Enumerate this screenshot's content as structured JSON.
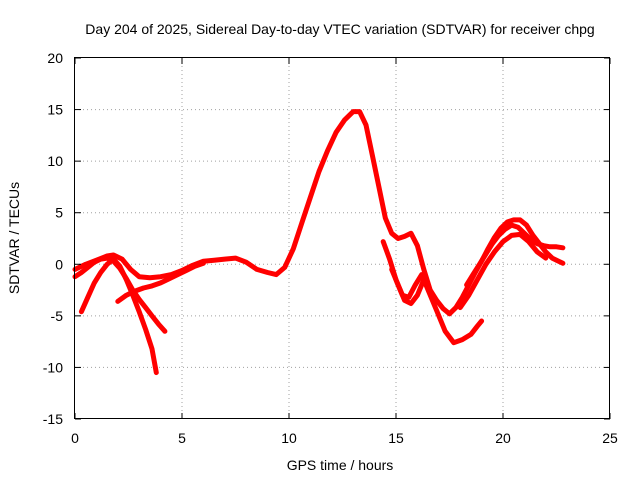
{
  "chart_data": {
    "type": "line",
    "title": "Day 204 of 2025, Sidereal Day-to-day VTEC variation (SDTVAR) for receiver chpg",
    "xlabel": "GPS time / hours",
    "ylabel": "SDTVAR / TECUs",
    "xlim": [
      0,
      25
    ],
    "ylim": [
      -15,
      20
    ],
    "xticks": [
      0,
      5,
      10,
      15,
      20,
      25
    ],
    "yticks": [
      -15,
      -10,
      -5,
      0,
      5,
      10,
      15,
      20
    ],
    "xtick_labels": [
      "0",
      "5",
      "10",
      "15",
      "20",
      "25"
    ],
    "ytick_labels": [
      "-15",
      "-10",
      "-5",
      "0",
      "5",
      "10",
      "15",
      "20"
    ],
    "grid": true,
    "series_color": "#ff0000",
    "series": [
      {
        "name": "main-trace",
        "x": [
          0.0,
          0.5,
          1.0,
          1.5,
          1.8,
          2.2,
          2.6,
          3.0,
          3.5,
          4.0,
          4.5,
          5.0,
          5.5,
          6.0,
          6.5,
          7.0,
          7.5,
          8.0,
          8.5,
          9.0,
          9.4,
          9.8,
          10.2,
          10.6,
          11.0,
          11.4,
          11.8,
          12.2,
          12.6,
          13.0,
          13.3,
          13.6,
          13.9,
          14.2,
          14.5,
          14.8,
          15.1,
          15.4,
          15.7,
          16.0,
          16.3,
          16.6,
          16.9,
          17.2,
          17.5,
          17.8,
          18.1,
          18.4,
          18.7,
          19.0,
          19.3,
          19.6,
          19.9,
          20.2,
          20.5,
          20.8,
          21.1,
          21.4,
          21.7,
          22.0,
          22.3,
          22.6,
          22.8
        ],
        "y": [
          -0.5,
          0.0,
          0.4,
          0.8,
          0.9,
          0.5,
          -0.5,
          -1.2,
          -1.3,
          -1.2,
          -1.0,
          -0.6,
          -0.1,
          0.3,
          0.4,
          0.5,
          0.6,
          0.2,
          -0.5,
          -0.8,
          -1.0,
          -0.3,
          1.5,
          4.0,
          6.5,
          9.0,
          11.0,
          12.8,
          14.0,
          14.8,
          14.8,
          13.5,
          10.5,
          7.5,
          4.5,
          3.0,
          2.5,
          2.7,
          3.0,
          1.8,
          -0.5,
          -2.5,
          -3.5,
          -4.3,
          -4.8,
          -4.2,
          -3.2,
          -2.0,
          -0.8,
          0.3,
          1.5,
          2.6,
          3.5,
          4.1,
          4.3,
          4.3,
          3.8,
          2.8,
          2.0,
          1.2,
          0.6,
          0.3,
          0.1
        ]
      },
      {
        "name": "left-branch-a",
        "x": [
          0.3,
          0.6,
          0.9,
          1.2,
          1.5,
          1.8,
          2.1,
          2.4,
          2.7,
          3.0,
          3.3,
          3.6,
          3.8
        ],
        "y": [
          -4.6,
          -3.2,
          -1.8,
          -0.8,
          0.0,
          0.5,
          -0.2,
          -1.5,
          -3.0,
          -4.6,
          -6.3,
          -8.2,
          -10.5
        ]
      },
      {
        "name": "left-branch-b",
        "x": [
          0.0,
          0.3,
          0.6,
          0.9,
          1.2,
          1.5,
          1.8,
          2.1,
          2.4,
          2.7,
          3.0,
          3.3,
          3.6,
          3.9,
          4.2
        ],
        "y": [
          -1.2,
          -0.8,
          -0.3,
          0.2,
          0.5,
          0.6,
          0.3,
          -0.4,
          -1.4,
          -2.5,
          -3.4,
          -4.2,
          -5.0,
          -5.8,
          -6.5
        ]
      },
      {
        "name": "left-branch-c",
        "x": [
          2.0,
          2.4,
          2.8,
          3.2,
          3.6,
          4.0,
          4.4,
          4.8,
          5.2,
          5.6,
          6.0
        ],
        "y": [
          -3.6,
          -3.0,
          -2.6,
          -2.3,
          -2.1,
          -1.8,
          -1.4,
          -1.0,
          -0.6,
          -0.2,
          0.1
        ]
      },
      {
        "name": "post-peak-branch",
        "x": [
          14.4,
          14.7,
          15.0,
          15.3,
          15.6,
          15.9,
          16.2,
          16.5,
          16.9,
          17.3,
          17.7,
          18.1,
          18.5,
          18.8,
          19.0
        ],
        "y": [
          2.2,
          0.5,
          -1.5,
          -3.0,
          -3.2,
          -2.0,
          -1.0,
          -2.5,
          -4.5,
          -6.5,
          -7.6,
          -7.3,
          -6.8,
          -6.0,
          -5.5
        ]
      },
      {
        "name": "post-peak-branch-b",
        "x": [
          14.8,
          15.1,
          15.4,
          15.7,
          16.0,
          16.3
        ],
        "y": [
          -0.5,
          -2.0,
          -3.5,
          -3.8,
          -3.0,
          -1.5
        ]
      },
      {
        "name": "evening-branch",
        "x": [
          18.3,
          18.6,
          18.9,
          19.2,
          19.5,
          19.8,
          20.1,
          20.4,
          20.7,
          21.0,
          21.3,
          21.6,
          21.9,
          22.2,
          22.5,
          22.8
        ],
        "y": [
          -2.0,
          -1.0,
          0.0,
          1.0,
          2.0,
          2.8,
          3.4,
          3.8,
          3.6,
          3.0,
          2.4,
          2.0,
          1.8,
          1.7,
          1.7,
          1.6
        ]
      },
      {
        "name": "evening-branch-b",
        "x": [
          18.0,
          18.4,
          18.8,
          19.2,
          19.6,
          20.0,
          20.4,
          20.8,
          21.2,
          21.6,
          22.0
        ],
        "y": [
          -4.2,
          -3.0,
          -1.5,
          0.0,
          1.2,
          2.2,
          2.8,
          2.9,
          2.2,
          1.2,
          0.6
        ]
      }
    ]
  }
}
